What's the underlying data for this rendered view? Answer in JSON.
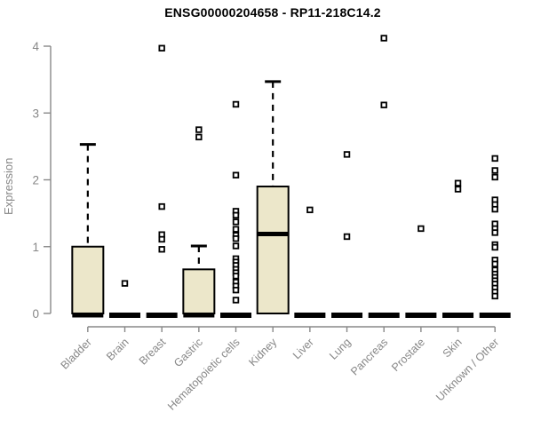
{
  "page": {
    "background": "#ffffff"
  },
  "colors": {
    "box_fill": "#ece7ca",
    "box_stroke": "#000000",
    "outlier": "#000000",
    "axis": "#888888",
    "tick_text": "#878787",
    "title_text": "#000000"
  },
  "chart_data": {
    "type": "boxplot",
    "title": "ENSG00000204658 - RP11-218C14.2",
    "ylabel": "Expression",
    "xlabel": "",
    "ylim": [
      0,
      4
    ],
    "yticks": [
      0,
      1,
      2,
      3,
      4
    ],
    "grid": false,
    "legend": "none",
    "categories": [
      "Bladder",
      "Brain",
      "Breast",
      "Gastric",
      "Hematopoietic cells",
      "Kidney",
      "Liver",
      "Lung",
      "Pancreas",
      "Prostate",
      "Skin",
      "Unknown / Other"
    ],
    "series": [
      {
        "name": "Bladder",
        "q1": 0,
        "median": 0,
        "q3": 1.0,
        "whisker_low": 0,
        "whisker_high": 2.53,
        "outliers": []
      },
      {
        "name": "Brain",
        "q1": 0,
        "median": 0,
        "q3": 0,
        "whisker_low": 0,
        "whisker_high": 0,
        "outliers": [
          0.45
        ]
      },
      {
        "name": "Breast",
        "q1": 0,
        "median": 0,
        "q3": 0,
        "whisker_low": 0,
        "whisker_high": 0,
        "outliers": [
          3.97,
          1.6,
          1.18,
          1.11,
          0.96
        ]
      },
      {
        "name": "Gastric",
        "q1": 0,
        "median": 0,
        "q3": 0.66,
        "whisker_low": 0,
        "whisker_high": 1.01,
        "outliers": [
          2.75,
          2.64
        ]
      },
      {
        "name": "Hematopoietic cells",
        "q1": 0,
        "median": 0,
        "q3": 0,
        "whisker_low": 0,
        "whisker_high": 0,
        "outliers": [
          3.13,
          2.07,
          1.53,
          1.47,
          1.37,
          1.26,
          1.17,
          1.12,
          1.01,
          0.82,
          0.77,
          0.72,
          0.66,
          0.61,
          0.56,
          0.47,
          0.41,
          0.35,
          0.2
        ]
      },
      {
        "name": "Kidney",
        "q1": 0,
        "median": 1.19,
        "q3": 1.9,
        "whisker_low": 0,
        "whisker_high": 3.47,
        "outliers": []
      },
      {
        "name": "Liver",
        "q1": 0,
        "median": 0,
        "q3": 0,
        "whisker_low": 0,
        "whisker_high": 0,
        "outliers": [
          1.55
        ]
      },
      {
        "name": "Lung",
        "q1": 0,
        "median": 0,
        "q3": 0,
        "whisker_low": 0,
        "whisker_high": 0,
        "outliers": [
          2.38,
          1.15
        ]
      },
      {
        "name": "Pancreas",
        "q1": 0,
        "median": 0,
        "q3": 0,
        "whisker_low": 0,
        "whisker_high": 0,
        "outliers": [
          4.12,
          3.12
        ]
      },
      {
        "name": "Prostate",
        "q1": 0,
        "median": 0,
        "q3": 0,
        "whisker_low": 0,
        "whisker_high": 0,
        "outliers": [
          1.27
        ]
      },
      {
        "name": "Skin",
        "q1": 0,
        "median": 0,
        "q3": 0,
        "whisker_low": 0,
        "whisker_high": 0,
        "outliers": [
          1.95,
          1.86
        ]
      },
      {
        "name": "Unknown / Other",
        "q1": 0,
        "median": 0,
        "q3": 0,
        "whisker_low": 0,
        "whisker_high": 0,
        "outliers": [
          2.32,
          2.14,
          2.04,
          1.7,
          1.63,
          1.56,
          1.34,
          1.27,
          1.21,
          1.03,
          0.99,
          0.8,
          0.74,
          0.65,
          0.59,
          0.54,
          0.49,
          0.44,
          0.38,
          0.32,
          0.26
        ]
      }
    ]
  }
}
